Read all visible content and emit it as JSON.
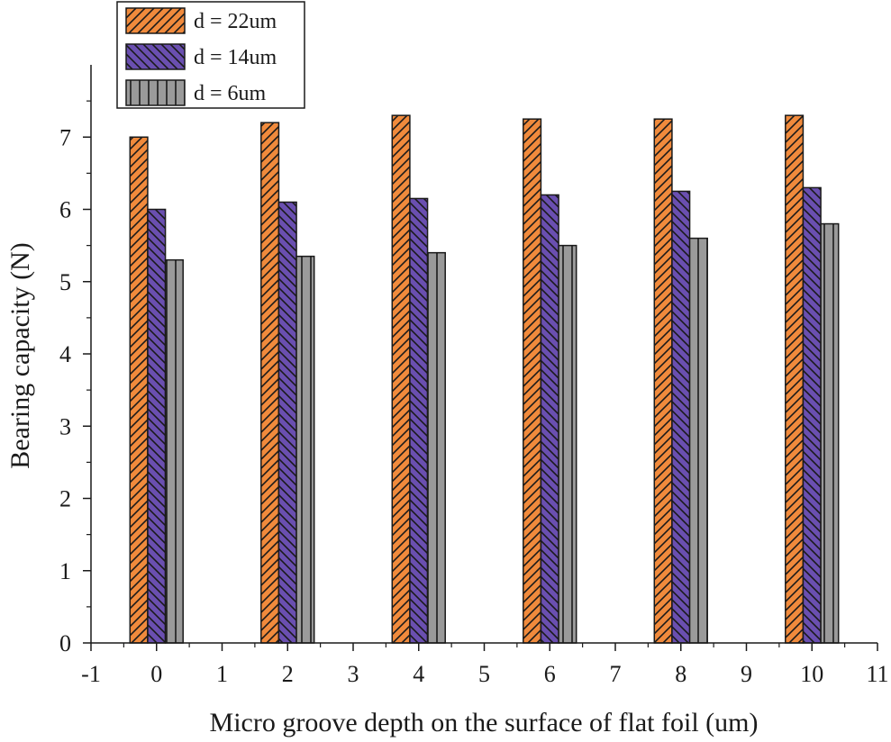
{
  "chart_data": {
    "type": "bar",
    "title": "",
    "xlabel": "Micro groove depth on the surface of flat foil (um)",
    "ylabel": "Bearing capacity (N)",
    "xlim": [
      -1,
      11
    ],
    "ylim": [
      0,
      8
    ],
    "x_ticks": [
      "-1",
      "0",
      "1",
      "2",
      "3",
      "4",
      "5",
      "6",
      "7",
      "8",
      "9",
      "10",
      "11"
    ],
    "y_ticks": [
      "0",
      "1",
      "2",
      "3",
      "4",
      "5",
      "6",
      "7"
    ],
    "categories": [
      0,
      2,
      4,
      6,
      8,
      10
    ],
    "series": [
      {
        "name": "d = 22um",
        "color": "#f08a3c",
        "pattern": "diagonal-up",
        "values": [
          7.0,
          7.2,
          7.3,
          7.25,
          7.25,
          7.3
        ]
      },
      {
        "name": "d = 14um",
        "color": "#6a4fb0",
        "pattern": "diagonal-down",
        "values": [
          6.0,
          6.1,
          6.15,
          6.2,
          6.25,
          6.3
        ]
      },
      {
        "name": "d = 6um",
        "color": "#9a9a9a",
        "pattern": "vertical",
        "values": [
          5.3,
          5.35,
          5.4,
          5.5,
          5.6,
          5.8
        ]
      }
    ],
    "legend_position": "top-left",
    "grid": false
  }
}
